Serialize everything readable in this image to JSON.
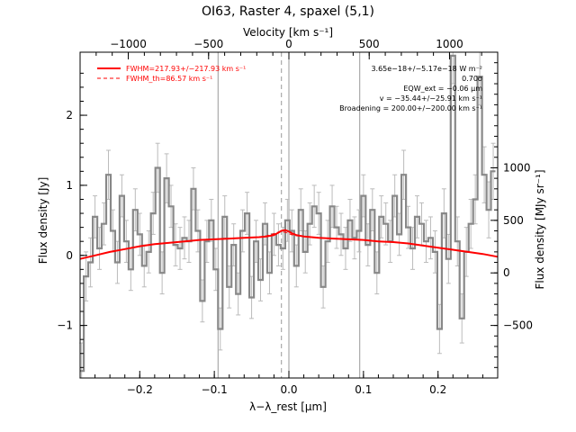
{
  "chart_data": {
    "type": "line",
    "title": "OI63, Raster 4, spaxel (5,1)",
    "xlabel": "λ−λ_rest [μm]",
    "ylabel": "Flux density [Jy]",
    "x2label": "Velocity [km s⁻¹]",
    "y2label": "Flux density [MJy sr⁻¹]",
    "xlim": [
      -0.28,
      0.28
    ],
    "ylim": [
      -1.75,
      2.9
    ],
    "x2lim": [
      -1300,
      1300
    ],
    "y2lim": [
      -1000,
      2100
    ],
    "xticks": [
      -0.2,
      -0.1,
      0.0,
      0.1,
      0.2
    ],
    "xtick_labels": [
      "−0.2",
      "−0.1",
      "0.0",
      "0.1",
      "0.2"
    ],
    "yticks": [
      -1,
      0,
      1,
      2
    ],
    "ytick_labels": [
      "−1",
      "0",
      "1",
      "2"
    ],
    "x2ticks": [
      -1000,
      -500,
      0,
      500,
      1000
    ],
    "x2tick_labels": [
      "−1000",
      "−500",
      "0",
      "500",
      "1000"
    ],
    "y2ticks": [
      -500,
      0,
      500,
      1000
    ],
    "y2tick_labels": [
      "−500",
      "0",
      "500",
      "1000"
    ],
    "vlines_solid": [
      -0.095,
      0.0,
      0.095
    ],
    "vline_dashed": -0.01,
    "legend": {
      "placement": "top-left",
      "entries": [
        {
          "label": "FWHM=217.93+/−217.93 km s⁻¹",
          "style": "solid",
          "color": "#ff0000"
        },
        {
          "label": "FWHM_th=86.57 km s⁻¹",
          "style": "dashed",
          "color": "#ff0000"
        }
      ]
    },
    "annotations": [
      "3.65e−18+/−5.17e−18 W m⁻²",
      "0.70σ",
      "EQW_ext = −0.06 μm",
      "v = −35.44+/−25.91 km s⁻¹",
      "Broadening = 200.00+/−200.00 km s⁻¹"
    ],
    "series": [
      {
        "name": "data",
        "style": "steps",
        "color": "#888888",
        "x": [
          -0.278,
          -0.272,
          -0.266,
          -0.26,
          -0.254,
          -0.248,
          -0.242,
          -0.236,
          -0.23,
          -0.224,
          -0.218,
          -0.212,
          -0.206,
          -0.2,
          -0.194,
          -0.188,
          -0.182,
          -0.176,
          -0.17,
          -0.164,
          -0.158,
          -0.152,
          -0.146,
          -0.14,
          -0.134,
          -0.128,
          -0.122,
          -0.116,
          -0.11,
          -0.104,
          -0.098,
          -0.092,
          -0.086,
          -0.08,
          -0.074,
          -0.068,
          -0.062,
          -0.056,
          -0.05,
          -0.044,
          -0.038,
          -0.032,
          -0.026,
          -0.02,
          -0.014,
          -0.008,
          -0.002,
          0.004,
          0.01,
          0.016,
          0.022,
          0.028,
          0.034,
          0.04,
          0.046,
          0.052,
          0.058,
          0.064,
          0.07,
          0.076,
          0.082,
          0.088,
          0.094,
          0.1,
          0.106,
          0.112,
          0.118,
          0.124,
          0.13,
          0.136,
          0.142,
          0.148,
          0.154,
          0.16,
          0.166,
          0.172,
          0.178,
          0.184,
          0.19,
          0.196,
          0.202,
          0.208,
          0.214,
          0.22,
          0.226,
          0.232,
          0.238,
          0.244,
          0.25,
          0.256,
          0.262,
          0.268,
          0.274
        ],
        "y": [
          -1.65,
          -0.3,
          -0.1,
          0.55,
          0.1,
          0.45,
          1.15,
          0.35,
          -0.1,
          0.85,
          0.2,
          -0.2,
          0.65,
          0.3,
          -0.15,
          0.05,
          0.6,
          1.25,
          -0.25,
          1.1,
          0.7,
          0.15,
          0.1,
          0.25,
          0.2,
          0.95,
          0.35,
          -0.65,
          0.2,
          0.5,
          -0.2,
          -1.05,
          0.55,
          -0.45,
          0.15,
          -0.55,
          0.35,
          0.6,
          -0.6,
          0.2,
          -0.35,
          0.45,
          -0.25,
          0.3,
          0.15,
          0.1,
          0.5,
          0.35,
          -0.15,
          0.65,
          0.05,
          0.45,
          0.7,
          0.6,
          -0.45,
          0.2,
          0.7,
          0.4,
          0.3,
          0.1,
          0.5,
          0.25,
          0.35,
          0.85,
          0.15,
          0.65,
          -0.25,
          0.55,
          0.45,
          0.2,
          0.85,
          0.3,
          1.15,
          0.4,
          0.1,
          0.55,
          0.45,
          0.2,
          0.25,
          0.05,
          -1.05,
          0.6,
          -0.05,
          2.85,
          0.2,
          -0.9,
          0.05,
          0.45,
          0.8,
          2.55,
          1.15,
          0.65,
          1.2
        ],
        "err": [
          0.4,
          0.35,
          0.35,
          0.3,
          0.3,
          0.3,
          0.35,
          0.3,
          0.3,
          0.3,
          0.3,
          0.3,
          0.3,
          0.3,
          0.3,
          0.3,
          0.3,
          0.35,
          0.3,
          0.35,
          0.3,
          0.3,
          0.3,
          0.3,
          0.3,
          0.3,
          0.3,
          0.3,
          0.3,
          0.3,
          0.3,
          0.3,
          0.3,
          0.3,
          0.3,
          0.3,
          0.3,
          0.3,
          0.3,
          0.3,
          0.3,
          0.3,
          0.3,
          0.3,
          0.3,
          0.3,
          0.3,
          0.3,
          0.3,
          0.3,
          0.3,
          0.3,
          0.3,
          0.3,
          0.3,
          0.3,
          0.3,
          0.3,
          0.3,
          0.3,
          0.3,
          0.3,
          0.3,
          0.3,
          0.3,
          0.3,
          0.3,
          0.3,
          0.3,
          0.3,
          0.3,
          0.3,
          0.35,
          0.3,
          0.3,
          0.3,
          0.3,
          0.3,
          0.3,
          0.3,
          0.35,
          0.35,
          0.35,
          0.4,
          0.35,
          0.35,
          0.35,
          0.35,
          0.35,
          0.4,
          0.4,
          0.4,
          0.4
        ]
      },
      {
        "name": "fit",
        "style": "solid",
        "color": "#ff0000",
        "x": [
          -0.28,
          -0.26,
          -0.24,
          -0.22,
          -0.2,
          -0.18,
          -0.16,
          -0.14,
          -0.12,
          -0.1,
          -0.08,
          -0.06,
          -0.04,
          -0.03,
          -0.02,
          -0.015,
          -0.01,
          -0.005,
          0.0,
          0.005,
          0.01,
          0.02,
          0.03,
          0.04,
          0.06,
          0.08,
          0.1,
          0.12,
          0.14,
          0.16,
          0.18,
          0.2,
          0.22,
          0.24,
          0.26,
          0.28
        ],
        "y": [
          -0.05,
          0.0,
          0.05,
          0.09,
          0.13,
          0.16,
          0.18,
          0.2,
          0.22,
          0.23,
          0.24,
          0.25,
          0.26,
          0.27,
          0.29,
          0.32,
          0.35,
          0.36,
          0.34,
          0.31,
          0.29,
          0.27,
          0.26,
          0.25,
          0.24,
          0.23,
          0.22,
          0.2,
          0.19,
          0.17,
          0.14,
          0.11,
          0.08,
          0.05,
          0.02,
          -0.02
        ]
      },
      {
        "name": "fit_th",
        "style": "dashed",
        "color": "#ff0000",
        "x": [
          -0.04,
          -0.03,
          -0.02,
          -0.015,
          -0.01,
          -0.005,
          0.0,
          0.005,
          0.01,
          0.02,
          0.03,
          0.04
        ],
        "y": [
          0.26,
          0.28,
          0.31,
          0.33,
          0.34,
          0.33,
          0.31,
          0.29,
          0.28,
          0.27,
          0.26,
          0.25
        ]
      }
    ]
  }
}
